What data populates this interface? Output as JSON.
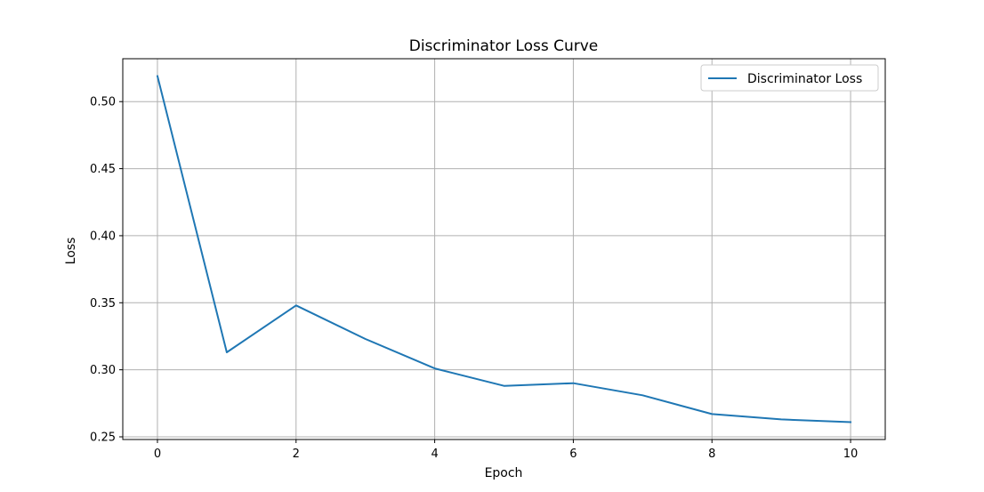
{
  "chart_data": {
    "type": "line",
    "title": "Discriminator Loss Curve",
    "xlabel": "Epoch",
    "ylabel": "Loss",
    "xlim": [
      -0.5,
      10.5
    ],
    "ylim": [
      0.248,
      0.532
    ],
    "xticks": [
      0,
      2,
      4,
      6,
      8,
      10
    ],
    "xtick_labels": [
      "0",
      "2",
      "4",
      "6",
      "8",
      "10"
    ],
    "yticks": [
      0.25,
      0.3,
      0.35,
      0.4,
      0.45,
      0.5
    ],
    "ytick_labels": [
      "0.25",
      "0.30",
      "0.35",
      "0.40",
      "0.45",
      "0.50"
    ],
    "grid": true,
    "legend": {
      "position": "top-right"
    },
    "series": [
      {
        "name": "Discriminator Loss",
        "color": "#1f77b4",
        "x": [
          0,
          1,
          2,
          3,
          4,
          5,
          6,
          7,
          8,
          9,
          10
        ],
        "y": [
          0.519,
          0.313,
          0.348,
          0.323,
          0.301,
          0.288,
          0.29,
          0.281,
          0.267,
          0.263,
          0.261
        ]
      }
    ]
  }
}
